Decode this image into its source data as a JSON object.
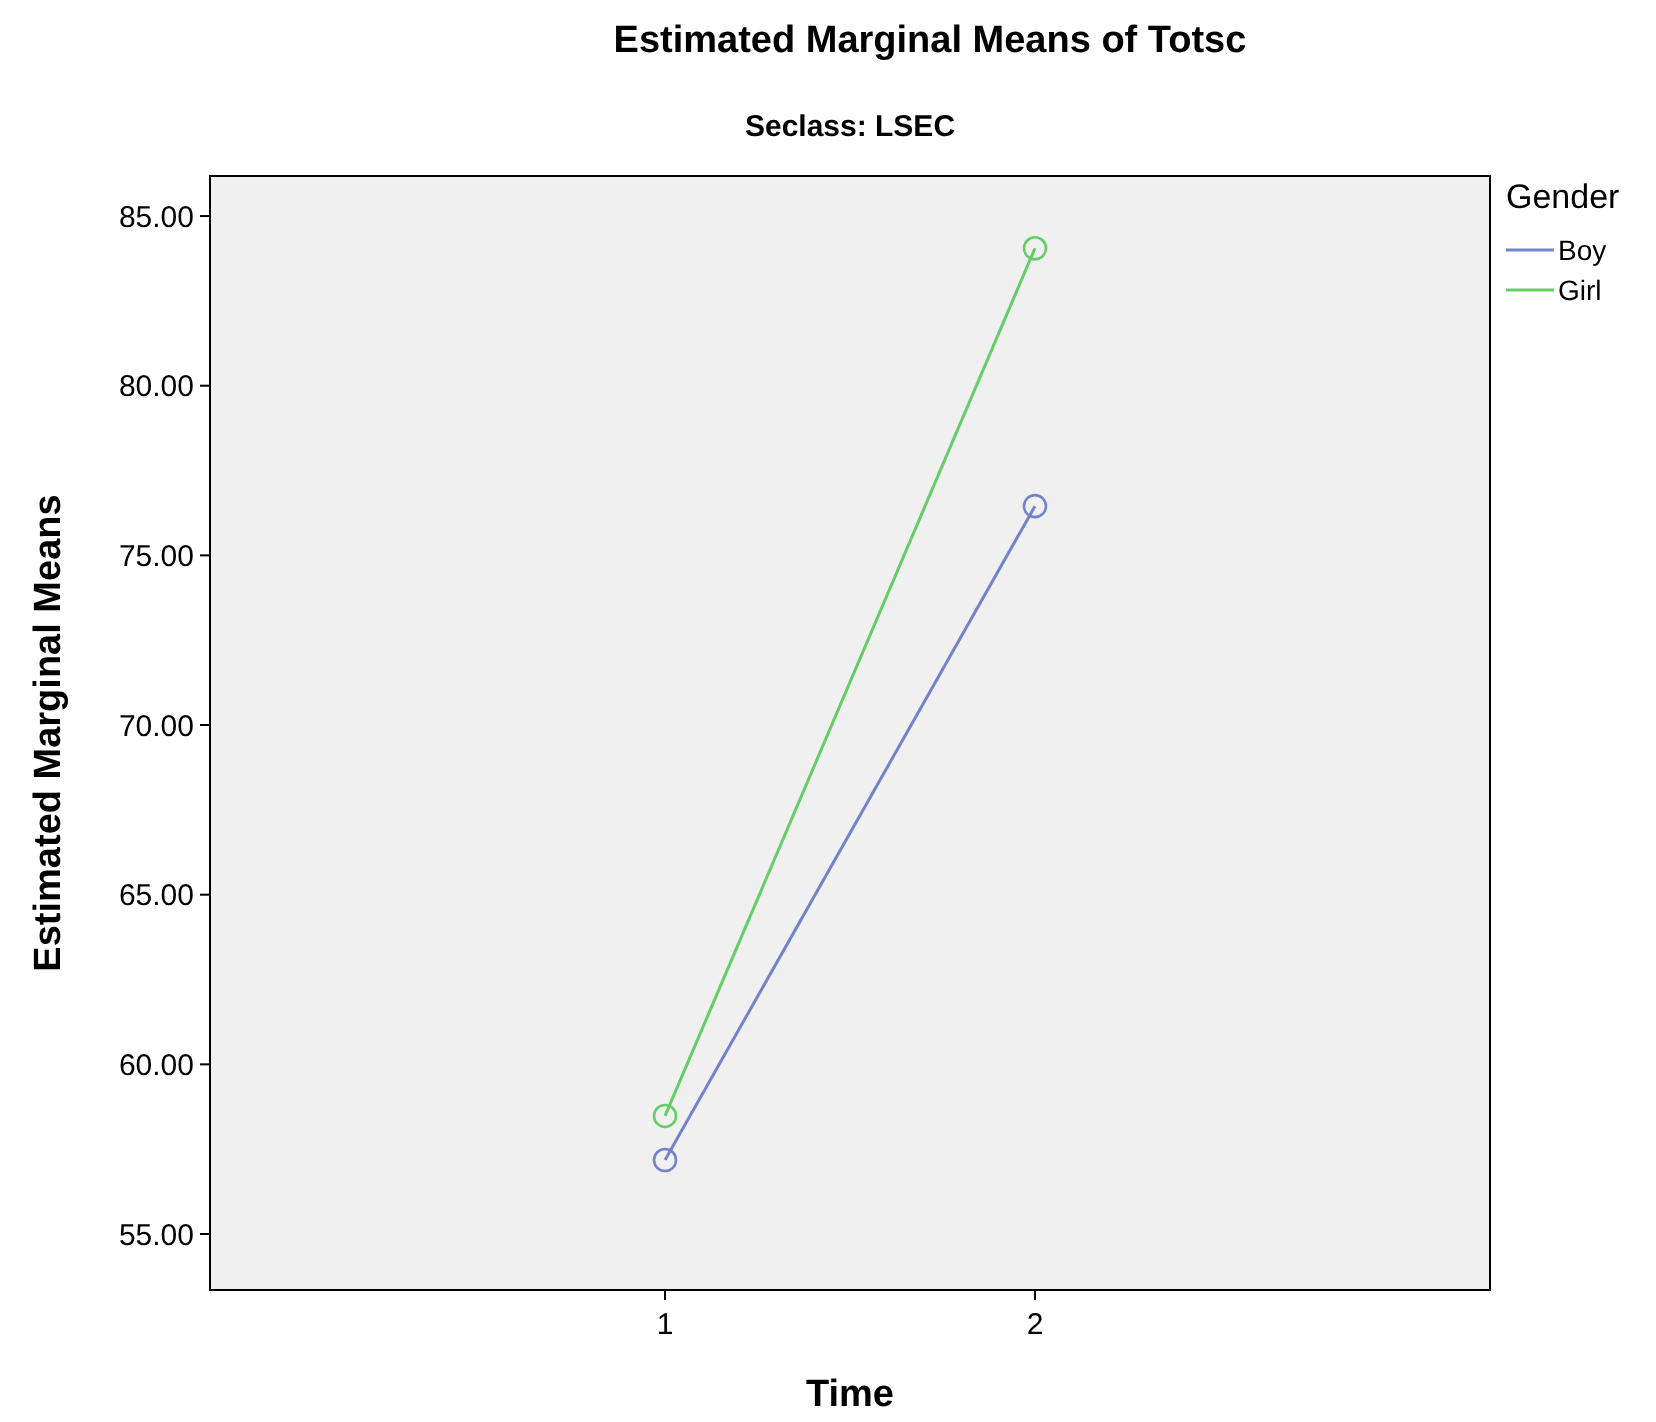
{
  "chart_data": {
    "type": "line",
    "title": "Estimated Marginal Means of Totsc",
    "subtitle": "Seclass: LSEC",
    "xlabel": "Time",
    "ylabel": "Estimated Marginal Means",
    "legend_title": "Gender",
    "categories": [
      "1",
      "2"
    ],
    "series": [
      {
        "name": "Boy",
        "color": "#7483c8",
        "values": [
          57.18,
          76.45
        ]
      },
      {
        "name": "Girl",
        "color": "#66cc66",
        "values": [
          58.48,
          84.05
        ]
      }
    ],
    "ylim": [
      53.35,
      86.18
    ],
    "yticks": [
      {
        "value": 55,
        "label": "55.00"
      },
      {
        "value": 60,
        "label": "60.00"
      },
      {
        "value": 65,
        "label": "65.00"
      },
      {
        "value": 70,
        "label": "70.00"
      },
      {
        "value": 75,
        "label": "75.00"
      },
      {
        "value": 80,
        "label": "80.00"
      },
      {
        "value": 85,
        "label": "85.00"
      }
    ],
    "grid": false,
    "legend": "top right",
    "marker": "circle",
    "line_style": "solid"
  }
}
